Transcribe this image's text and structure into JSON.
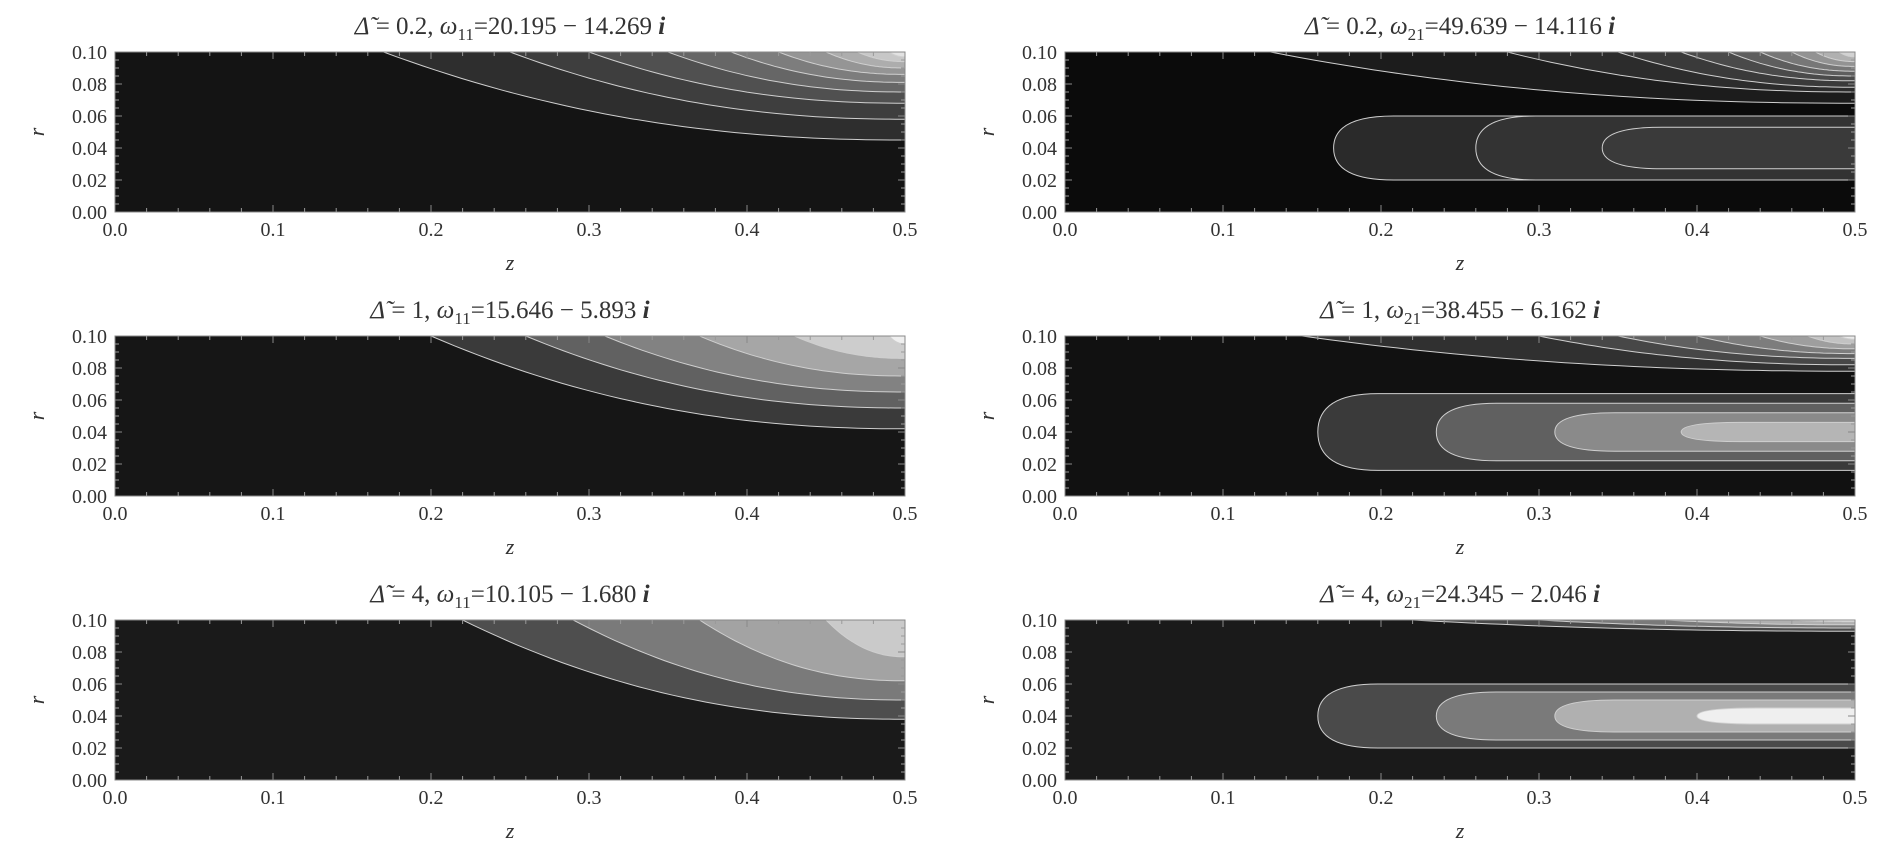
{
  "chart_data": [
    {
      "type": "contour",
      "title": "Δ̃ = 0.2,  ω₁₁=20.195 − 14.269 i",
      "title_parts": {
        "delta": "0.2",
        "mode": "11",
        "omega": "20.195 − 14.269"
      },
      "xlabel": "z",
      "ylabel": "r",
      "xlim": [
        0,
        0.5
      ],
      "ylim": [
        0,
        0.1
      ],
      "xticks": [
        "0.0",
        "0.1",
        "0.2",
        "0.3",
        "0.4",
        "0.5"
      ],
      "yticks": [
        "0.00",
        "0.02",
        "0.04",
        "0.06",
        "0.08",
        "0.10"
      ],
      "mode": 1,
      "levels": [
        {
          "z_edge": 0.11,
          "r_asym": 0.1,
          "shade": "#141414"
        },
        {
          "z_edge": 0.17,
          "r_asym": 0.045,
          "shade": "#2e2e2e"
        },
        {
          "z_edge": 0.25,
          "r_asym": 0.058,
          "shade": "#3e3e3e"
        },
        {
          "z_edge": 0.3,
          "r_asym": 0.068,
          "shade": "#505050"
        },
        {
          "z_edge": 0.35,
          "r_asym": 0.075,
          "shade": "#666666"
        },
        {
          "z_edge": 0.39,
          "r_asym": 0.081,
          "shade": "#7d7d7d"
        },
        {
          "z_edge": 0.42,
          "r_asym": 0.086,
          "shade": "#959595"
        },
        {
          "z_edge": 0.45,
          "r_asym": 0.09,
          "shade": "#adadad"
        },
        {
          "z_edge": 0.47,
          "r_asym": 0.094,
          "shade": "#c7c7c7"
        },
        {
          "z_edge": 0.49,
          "r_asym": 0.097,
          "shade": "#e2e2e2"
        }
      ]
    },
    {
      "type": "contour",
      "title": "Δ̃ = 0.2,  ω₂₁=49.639 − 14.116 i",
      "title_parts": {
        "delta": "0.2",
        "mode": "21",
        "omega": "49.639 − 14.116"
      },
      "xlabel": "z",
      "ylabel": "r",
      "xlim": [
        0,
        0.5
      ],
      "ylim": [
        0,
        0.1
      ],
      "xticks": [
        "0.0",
        "0.1",
        "0.2",
        "0.3",
        "0.4",
        "0.5"
      ],
      "yticks": [
        "0.00",
        "0.02",
        "0.04",
        "0.06",
        "0.08",
        "0.10"
      ],
      "mode": 2,
      "lobes": [
        {
          "z_left": 0.17,
          "r_center": 0.04,
          "half_width": 0.02,
          "shade": "#2a2a2a"
        },
        {
          "z_left": 0.26,
          "r_center": 0.04,
          "half_width": 0.02,
          "shade": "#333333"
        },
        {
          "z_left": 0.34,
          "r_center": 0.04,
          "half_width": 0.013,
          "shade": "#3a3a3a"
        }
      ],
      "levels": [
        {
          "z_edge": 0.09,
          "r_asym": 0.1,
          "shade": "#0b0b0b"
        },
        {
          "z_edge": 0.13,
          "r_asym": 0.068,
          "shade": "#1c1c1c"
        },
        {
          "z_edge": 0.28,
          "r_asym": 0.075,
          "shade": "#2c2c2c"
        },
        {
          "z_edge": 0.35,
          "r_asym": 0.078,
          "shade": "#3a3a3a"
        },
        {
          "z_edge": 0.39,
          "r_asym": 0.082,
          "shade": "#4a4a4a"
        },
        {
          "z_edge": 0.42,
          "r_asym": 0.085,
          "shade": "#5e5e5e"
        },
        {
          "z_edge": 0.44,
          "r_asym": 0.088,
          "shade": "#777777"
        },
        {
          "z_edge": 0.46,
          "r_asym": 0.091,
          "shade": "#939393"
        },
        {
          "z_edge": 0.475,
          "r_asym": 0.094,
          "shade": "#b0b0b0"
        },
        {
          "z_edge": 0.49,
          "r_asym": 0.097,
          "shade": "#d2d2d2"
        }
      ]
    },
    {
      "type": "contour",
      "title": "Δ̃ = 1,  ω₁₁=15.646 − 5.893 i",
      "title_parts": {
        "delta": "1",
        "mode": "11",
        "omega": "15.646 − 5.893"
      },
      "xlabel": "z",
      "ylabel": "r",
      "xlim": [
        0,
        0.5
      ],
      "ylim": [
        0,
        0.1
      ],
      "xticks": [
        "0.0",
        "0.1",
        "0.2",
        "0.3",
        "0.4",
        "0.5"
      ],
      "yticks": [
        "0.00",
        "0.02",
        "0.04",
        "0.06",
        "0.08",
        "0.10"
      ],
      "mode": 1,
      "levels": [
        {
          "z_edge": 0.13,
          "r_asym": 0.1,
          "shade": "#161616"
        },
        {
          "z_edge": 0.2,
          "r_asym": 0.042,
          "shade": "#3a3a3a"
        },
        {
          "z_edge": 0.26,
          "r_asym": 0.055,
          "shade": "#616161"
        },
        {
          "z_edge": 0.31,
          "r_asym": 0.065,
          "shade": "#828282"
        },
        {
          "z_edge": 0.37,
          "r_asym": 0.075,
          "shade": "#a6a6a6"
        },
        {
          "z_edge": 0.43,
          "r_asym": 0.086,
          "shade": "#cdcdcd"
        },
        {
          "z_edge": 0.49,
          "r_asym": 0.095,
          "shade": "#efefef"
        }
      ]
    },
    {
      "type": "contour",
      "title": "Δ̃ = 1,  ω₂₁=38.455 − 6.162 i",
      "title_parts": {
        "delta": "1",
        "mode": "21",
        "omega": "38.455 − 6.162"
      },
      "xlabel": "z",
      "ylabel": "r",
      "xlim": [
        0,
        0.5
      ],
      "ylim": [
        0,
        0.1
      ],
      "xticks": [
        "0.0",
        "0.1",
        "0.2",
        "0.3",
        "0.4",
        "0.5"
      ],
      "yticks": [
        "0.00",
        "0.02",
        "0.04",
        "0.06",
        "0.08",
        "0.10"
      ],
      "mode": 2,
      "lobes": [
        {
          "z_left": 0.16,
          "r_center": 0.04,
          "half_width": 0.024,
          "shade": "#3a3a3a"
        },
        {
          "z_left": 0.235,
          "r_center": 0.04,
          "half_width": 0.018,
          "shade": "#606060"
        },
        {
          "z_left": 0.31,
          "r_center": 0.04,
          "half_width": 0.012,
          "shade": "#8a8a8a"
        },
        {
          "z_left": 0.39,
          "r_center": 0.04,
          "half_width": 0.006,
          "shade": "#b5b5b5"
        }
      ],
      "levels": [
        {
          "z_edge": 0.11,
          "r_asym": 0.1,
          "shade": "#111111"
        },
        {
          "z_edge": 0.15,
          "r_asym": 0.078,
          "shade": "#303030"
        },
        {
          "z_edge": 0.3,
          "r_asym": 0.082,
          "shade": "#474747"
        },
        {
          "z_edge": 0.35,
          "r_asym": 0.086,
          "shade": "#606060"
        },
        {
          "z_edge": 0.4,
          "r_asym": 0.089,
          "shade": "#7d7d7d"
        },
        {
          "z_edge": 0.44,
          "r_asym": 0.092,
          "shade": "#9e9e9e"
        },
        {
          "z_edge": 0.47,
          "r_asym": 0.095,
          "shade": "#c2c2c2"
        },
        {
          "z_edge": 0.49,
          "r_asym": 0.098,
          "shade": "#ebebeb"
        }
      ]
    },
    {
      "type": "contour",
      "title": "Δ̃ = 4,  ω₁₁=10.105 − 1.680 i",
      "title_parts": {
        "delta": "4",
        "mode": "11",
        "omega": "10.105 − 1.680"
      },
      "xlabel": "z",
      "ylabel": "r",
      "xlim": [
        0,
        0.5
      ],
      "ylim": [
        0,
        0.1
      ],
      "xticks": [
        "0.0",
        "0.1",
        "0.2",
        "0.3",
        "0.4",
        "0.5"
      ],
      "yticks": [
        "0.00",
        "0.02",
        "0.04",
        "0.06",
        "0.08",
        "0.10"
      ],
      "mode": 1,
      "levels": [
        {
          "z_edge": 0.15,
          "r_asym": 0.1,
          "shade": "#1a1a1a"
        },
        {
          "z_edge": 0.22,
          "r_asym": 0.038,
          "shade": "#4e4e4e"
        },
        {
          "z_edge": 0.29,
          "r_asym": 0.05,
          "shade": "#7a7a7a"
        },
        {
          "z_edge": 0.37,
          "r_asym": 0.062,
          "shade": "#a3a3a3"
        },
        {
          "z_edge": 0.45,
          "r_asym": 0.077,
          "shade": "#cacaca"
        },
        {
          "z_edge": 0.5,
          "r_asym": 0.089,
          "shade": "#efefef"
        }
      ]
    },
    {
      "type": "contour",
      "title": "Δ̃ = 4,  ω₂₁=24.345 − 2.046 i",
      "title_parts": {
        "delta": "4",
        "mode": "21",
        "omega": "24.345 − 2.046"
      },
      "xlabel": "z",
      "ylabel": "r",
      "xlim": [
        0,
        0.5
      ],
      "ylim": [
        0,
        0.1
      ],
      "xticks": [
        "0.0",
        "0.1",
        "0.2",
        "0.3",
        "0.4",
        "0.5"
      ],
      "yticks": [
        "0.00",
        "0.02",
        "0.04",
        "0.06",
        "0.08",
        "0.10"
      ],
      "mode": 2,
      "lobes": [
        {
          "z_left": 0.16,
          "r_center": 0.04,
          "half_width": 0.02,
          "shade": "#4a4a4a"
        },
        {
          "z_left": 0.235,
          "r_center": 0.04,
          "half_width": 0.015,
          "shade": "#7a7a7a"
        },
        {
          "z_left": 0.31,
          "r_center": 0.04,
          "half_width": 0.01,
          "shade": "#b0b0b0"
        },
        {
          "z_left": 0.4,
          "r_center": 0.04,
          "half_width": 0.005,
          "shade": "#efefef"
        }
      ],
      "levels": [
        {
          "z_edge": 0.15,
          "r_asym": 0.1,
          "shade": "#1a1a1a"
        },
        {
          "z_edge": 0.22,
          "r_asym": 0.093,
          "shade": "#4a4a4a"
        },
        {
          "z_edge": 0.3,
          "r_asym": 0.095,
          "shade": "#7a7a7a"
        },
        {
          "z_edge": 0.38,
          "r_asym": 0.097,
          "shade": "#b0b0b0"
        },
        {
          "z_edge": 0.46,
          "r_asym": 0.099,
          "shade": "#efefef"
        }
      ]
    }
  ]
}
